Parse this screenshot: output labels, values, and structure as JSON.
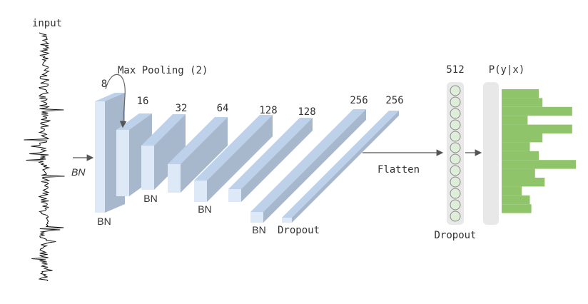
{
  "labels": {
    "input": "input",
    "input_bn": "BN",
    "max_pooling": "Max Pooling (2)",
    "flatten": "Flatten",
    "dense_dropout": "Dropout",
    "dense_units": "512",
    "output": "P(y|x)"
  },
  "layers": [
    {
      "filters": "8",
      "below": "BN"
    },
    {
      "filters": "16",
      "below": ""
    },
    {
      "filters": "32",
      "below": "BN"
    },
    {
      "filters": "64",
      "below": ""
    },
    {
      "filters": "128",
      "below": "BN"
    },
    {
      "filters": "128",
      "below": ""
    },
    {
      "filters": "256",
      "below": "BN"
    },
    {
      "filters": "256",
      "below": "Dropout"
    }
  ],
  "dense_neuron_count": 12,
  "output_histogram": [
    0.5,
    0.55,
    0.95,
    0.35,
    0.95,
    0.55,
    0.38,
    0.5,
    1.0,
    0.45,
    0.58,
    0.27,
    0.38,
    0.4
  ],
  "colors": {
    "block_front": "#dde9f7",
    "block_top": "#bdd1ea",
    "block_side": "#a7b8cc",
    "neuron_fill": "#dfeed6",
    "neuron_stroke": "#8a8a8a",
    "column_bg": "#e8e8e8",
    "histogram": "#8fc46a",
    "arrow": "#555555",
    "signal": "#111111"
  }
}
